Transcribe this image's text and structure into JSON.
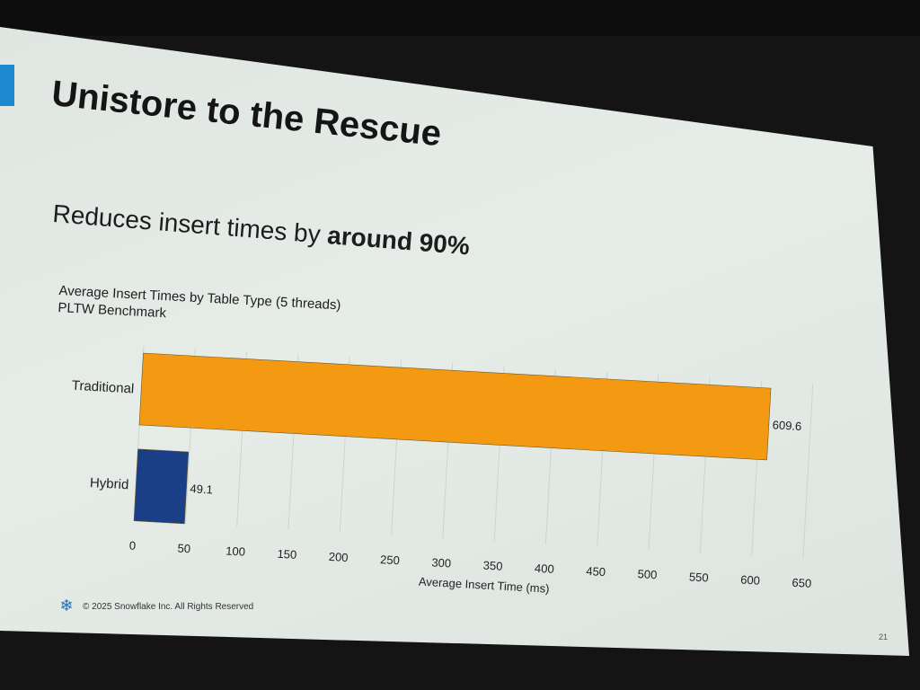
{
  "slide": {
    "title": "Unistore to the Rescue",
    "subtitle_prefix": "Reduces insert times by ",
    "subtitle_bold": "around 90%",
    "footer": "© 2025 Snowflake Inc. All Rights Reserved",
    "page_number": "21",
    "logo_icon": "snowflake-icon"
  },
  "chart_data": {
    "type": "bar",
    "orientation": "horizontal",
    "title": "Average Insert Times by Table Type (5 threads)",
    "subtitle": "PLTW Benchmark",
    "categories": [
      "Traditional",
      "Hybrid"
    ],
    "values": [
      609.6,
      49.1
    ],
    "data_labels": [
      "609.6",
      "49.1"
    ],
    "colors": [
      "#f39a12",
      "#1a3f86"
    ],
    "xlabel": "Average Insert Time (ms)",
    "ylabel": "",
    "xlim": [
      0,
      650
    ],
    "xticks": [
      0,
      50,
      100,
      150,
      200,
      250,
      300,
      350,
      400,
      450,
      500,
      550,
      600,
      650
    ],
    "grid": true,
    "legend": "none"
  }
}
